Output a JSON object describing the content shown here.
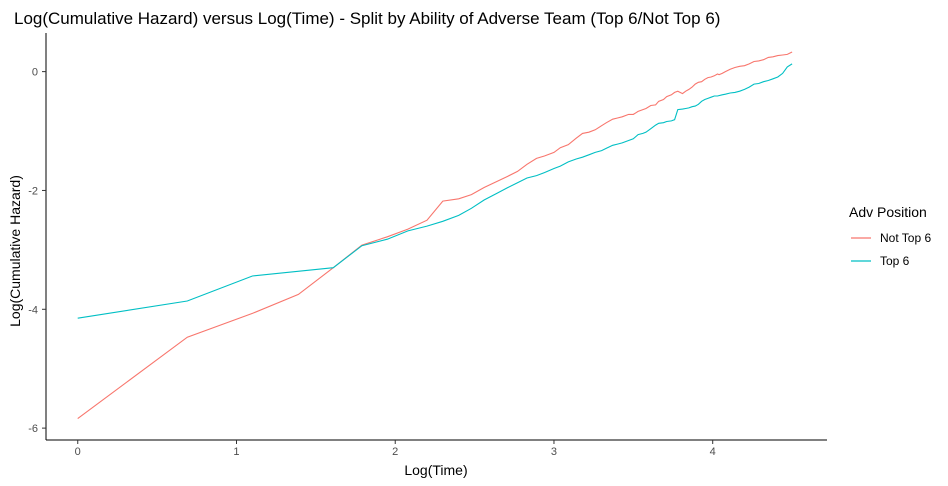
{
  "chart_data": {
    "type": "line",
    "title": "Log(Cumulative Hazard) versus Log(Time) - Split by Ability of Adverse Team (Top 6/Not Top 6)",
    "xlabel": "Log(Time)",
    "ylabel": "Log(Cumulative Hazard)",
    "xlim": [
      -0.2,
      4.72
    ],
    "ylim": [
      -6.2,
      0.65
    ],
    "x_ticks": [
      0,
      1,
      2,
      3,
      4
    ],
    "y_ticks": [
      -6,
      -4,
      -2,
      0
    ],
    "grid": false,
    "legend": {
      "title": "Adv Position",
      "position": "right"
    },
    "series": [
      {
        "name": "Not Top 6",
        "color": "#F8766D",
        "points": [
          [
            0.0,
            -5.84
          ],
          [
            0.69,
            -4.47
          ],
          [
            1.1,
            -4.07
          ],
          [
            1.39,
            -3.75
          ],
          [
            1.61,
            -3.3
          ],
          [
            1.79,
            -2.92
          ],
          [
            1.95,
            -2.78
          ],
          [
            2.08,
            -2.65
          ],
          [
            2.2,
            -2.5
          ],
          [
            2.3,
            -2.18
          ],
          [
            2.4,
            -2.14
          ],
          [
            2.48,
            -2.07
          ],
          [
            2.56,
            -1.95
          ],
          [
            2.64,
            -1.85
          ],
          [
            2.71,
            -1.76
          ],
          [
            2.77,
            -1.68
          ],
          [
            2.83,
            -1.56
          ],
          [
            2.89,
            -1.46
          ],
          [
            2.94,
            -1.42
          ],
          [
            3.0,
            -1.36
          ],
          [
            3.04,
            -1.28
          ],
          [
            3.09,
            -1.23
          ],
          [
            3.14,
            -1.12
          ],
          [
            3.18,
            -1.04
          ],
          [
            3.22,
            -1.02
          ],
          [
            3.26,
            -0.98
          ],
          [
            3.3,
            -0.91
          ],
          [
            3.33,
            -0.86
          ],
          [
            3.37,
            -0.8
          ],
          [
            3.4,
            -0.78
          ],
          [
            3.43,
            -0.76
          ],
          [
            3.47,
            -0.72
          ],
          [
            3.5,
            -0.72
          ],
          [
            3.53,
            -0.67
          ],
          [
            3.56,
            -0.64
          ],
          [
            3.58,
            -0.62
          ],
          [
            3.61,
            -0.57
          ],
          [
            3.64,
            -0.56
          ],
          [
            3.66,
            -0.5
          ],
          [
            3.69,
            -0.47
          ],
          [
            3.71,
            -0.42
          ],
          [
            3.74,
            -0.39
          ],
          [
            3.76,
            -0.35
          ],
          [
            3.78,
            -0.33
          ],
          [
            3.81,
            -0.37
          ],
          [
            3.83,
            -0.33
          ],
          [
            3.85,
            -0.3
          ],
          [
            3.87,
            -0.26
          ],
          [
            3.89,
            -0.21
          ],
          [
            3.91,
            -0.18
          ],
          [
            3.93,
            -0.17
          ],
          [
            3.95,
            -0.13
          ],
          [
            3.97,
            -0.1
          ],
          [
            3.99,
            -0.09
          ],
          [
            4.01,
            -0.07
          ],
          [
            4.03,
            -0.04
          ],
          [
            4.04,
            -0.05
          ],
          [
            4.06,
            -0.03
          ],
          [
            4.08,
            0.0
          ],
          [
            4.11,
            0.04
          ],
          [
            4.14,
            0.07
          ],
          [
            4.17,
            0.09
          ],
          [
            4.2,
            0.1
          ],
          [
            4.23,
            0.13
          ],
          [
            4.26,
            0.17
          ],
          [
            4.29,
            0.18
          ],
          [
            4.32,
            0.2
          ],
          [
            4.35,
            0.24
          ],
          [
            4.38,
            0.25
          ],
          [
            4.41,
            0.27
          ],
          [
            4.44,
            0.28
          ],
          [
            4.47,
            0.29
          ],
          [
            4.5,
            0.33
          ]
        ]
      },
      {
        "name": "Top 6",
        "color": "#00BFC4",
        "points": [
          [
            0.0,
            -4.15
          ],
          [
            0.69,
            -3.86
          ],
          [
            1.1,
            -3.44
          ],
          [
            1.61,
            -3.3
          ],
          [
            1.79,
            -2.93
          ],
          [
            1.95,
            -2.82
          ],
          [
            2.08,
            -2.68
          ],
          [
            2.2,
            -2.6
          ],
          [
            2.3,
            -2.52
          ],
          [
            2.4,
            -2.42
          ],
          [
            2.48,
            -2.3
          ],
          [
            2.56,
            -2.16
          ],
          [
            2.64,
            -2.05
          ],
          [
            2.71,
            -1.95
          ],
          [
            2.77,
            -1.87
          ],
          [
            2.83,
            -1.79
          ],
          [
            2.89,
            -1.75
          ],
          [
            2.94,
            -1.7
          ],
          [
            3.0,
            -1.63
          ],
          [
            3.04,
            -1.59
          ],
          [
            3.09,
            -1.52
          ],
          [
            3.14,
            -1.47
          ],
          [
            3.18,
            -1.44
          ],
          [
            3.22,
            -1.4
          ],
          [
            3.26,
            -1.36
          ],
          [
            3.3,
            -1.33
          ],
          [
            3.33,
            -1.29
          ],
          [
            3.37,
            -1.24
          ],
          [
            3.4,
            -1.22
          ],
          [
            3.43,
            -1.2
          ],
          [
            3.47,
            -1.16
          ],
          [
            3.5,
            -1.13
          ],
          [
            3.53,
            -1.06
          ],
          [
            3.56,
            -1.04
          ],
          [
            3.58,
            -1.02
          ],
          [
            3.61,
            -0.96
          ],
          [
            3.64,
            -0.9
          ],
          [
            3.66,
            -0.87
          ],
          [
            3.69,
            -0.86
          ],
          [
            3.71,
            -0.84
          ],
          [
            3.74,
            -0.83
          ],
          [
            3.76,
            -0.81
          ],
          [
            3.78,
            -0.64
          ],
          [
            3.81,
            -0.63
          ],
          [
            3.83,
            -0.62
          ],
          [
            3.85,
            -0.61
          ],
          [
            3.87,
            -0.59
          ],
          [
            3.89,
            -0.58
          ],
          [
            3.91,
            -0.55
          ],
          [
            3.93,
            -0.5
          ],
          [
            3.95,
            -0.47
          ],
          [
            3.97,
            -0.45
          ],
          [
            3.99,
            -0.43
          ],
          [
            4.01,
            -0.41
          ],
          [
            4.03,
            -0.41
          ],
          [
            4.06,
            -0.39
          ],
          [
            4.08,
            -0.38
          ],
          [
            4.11,
            -0.36
          ],
          [
            4.14,
            -0.35
          ],
          [
            4.17,
            -0.33
          ],
          [
            4.2,
            -0.3
          ],
          [
            4.23,
            -0.26
          ],
          [
            4.26,
            -0.21
          ],
          [
            4.29,
            -0.2
          ],
          [
            4.32,
            -0.17
          ],
          [
            4.35,
            -0.15
          ],
          [
            4.38,
            -0.12
          ],
          [
            4.41,
            -0.09
          ],
          [
            4.44,
            -0.03
          ],
          [
            4.47,
            0.08
          ],
          [
            4.5,
            0.13
          ]
        ]
      }
    ]
  }
}
